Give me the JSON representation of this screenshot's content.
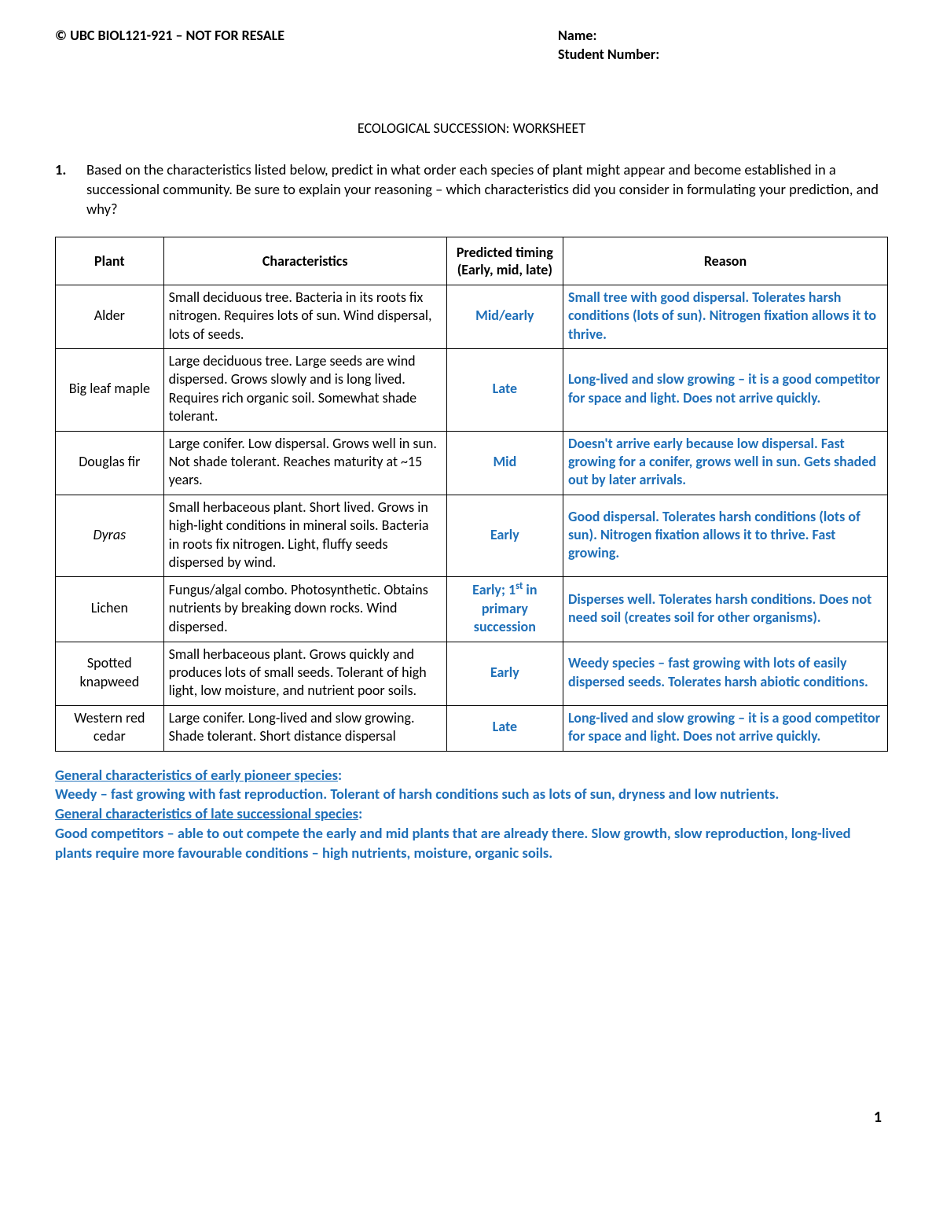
{
  "header": {
    "left": "© UBC BIOL121-921 – NOT FOR RESALE",
    "name_label": "Name:",
    "number_label": "Student Number:"
  },
  "title": "ECOLOGICAL SUCCESSION: WORKSHEET",
  "question": {
    "num": "1.",
    "text": "Based on the characteristics listed below, predict in what order each species of plant might appear and become established in a successional community. Be sure to explain your reasoning – which characteristics did you consider in formulating your prediction, and why?"
  },
  "columns": {
    "plant": "Plant",
    "characteristics": "Characteristics",
    "timing": "Predicted timing (Early, mid, late)",
    "reason": "Reason"
  },
  "rows": [
    {
      "plant": "Alder",
      "italic": false,
      "characteristics": "Small deciduous tree. Bacteria in its roots fix nitrogen. Requires lots of sun. Wind dispersal, lots of seeds.",
      "timing_html": "Mid/early",
      "reason": "Small tree with good dispersal. Tolerates harsh conditions (lots of sun). Nitrogen fixation allows it to thrive."
    },
    {
      "plant": "Big leaf maple",
      "italic": false,
      "characteristics": "Large deciduous tree. Large seeds are wind dispersed. Grows slowly and is long lived. Requires rich organic soil. Somewhat shade tolerant.",
      "timing_html": "Late",
      "reason": "Long-lived and slow growing – it is a good competitor for space and light. Does not arrive quickly."
    },
    {
      "plant": "Douglas fir",
      "italic": false,
      "characteristics": "Large conifer. Low dispersal. Grows well in sun. Not shade tolerant. Reaches maturity at ~15 years.",
      "timing_html": "Mid",
      "reason": "Doesn't arrive early because low dispersal. Fast growing for a conifer, grows well in sun. Gets shaded out by later arrivals."
    },
    {
      "plant": "Dyras",
      "italic": true,
      "characteristics": "Small herbaceous plant. Short lived. Grows in high-light conditions in mineral soils. Bacteria in roots fix nitrogen. Light, fluffy seeds dispersed by wind.",
      "timing_html": "Early",
      "reason": "Good dispersal. Tolerates harsh conditions (lots of sun). Nitrogen fixation allows it to thrive. Fast growing."
    },
    {
      "plant": "Lichen",
      "italic": false,
      "characteristics": "Fungus/algal combo. Photosynthetic. Obtains nutrients by breaking down rocks. Wind dispersed.",
      "timing_html": "Early; 1<sup>st</sup> in primary succession",
      "reason": "Disperses well. Tolerates harsh conditions. Does not need soil (creates soil for other organisms)."
    },
    {
      "plant": "Spotted knapweed",
      "italic": false,
      "characteristics": "Small herbaceous plant. Grows quickly and produces lots of small seeds. Tolerant of high light, low moisture, and nutrient poor soils.",
      "timing_html": "Early",
      "reason": "Weedy species – fast growing with lots of easily dispersed seeds. Tolerates harsh abiotic conditions."
    },
    {
      "plant": "Western red cedar",
      "italic": false,
      "characteristics": "Large conifer. Long-lived and slow growing. Shade tolerant.  Short distance dispersal",
      "timing_html": "Late",
      "reason": "Long-lived and slow growing – it is a good competitor for space and light. Does not arrive quickly."
    }
  ],
  "notes": {
    "early_heading": "General characteristics of early pioneer species",
    "early_body": "Weedy – fast growing with fast reproduction. Tolerant of harsh conditions such as lots of sun, dryness and low nutrients.",
    "late_heading": "General characteristics of late successional species",
    "late_body": "Good competitors – able to out compete the early and mid plants that are already there. Slow growth, slow reproduction, long-lived plants require more favourable conditions – high nutrients, moisture, organic soils."
  },
  "page_number": "1",
  "style": {
    "answer_color": "#1e6fb8",
    "text_color": "#000000",
    "border_color": "#000000",
    "background": "#ffffff",
    "font_family": "Calibri"
  }
}
